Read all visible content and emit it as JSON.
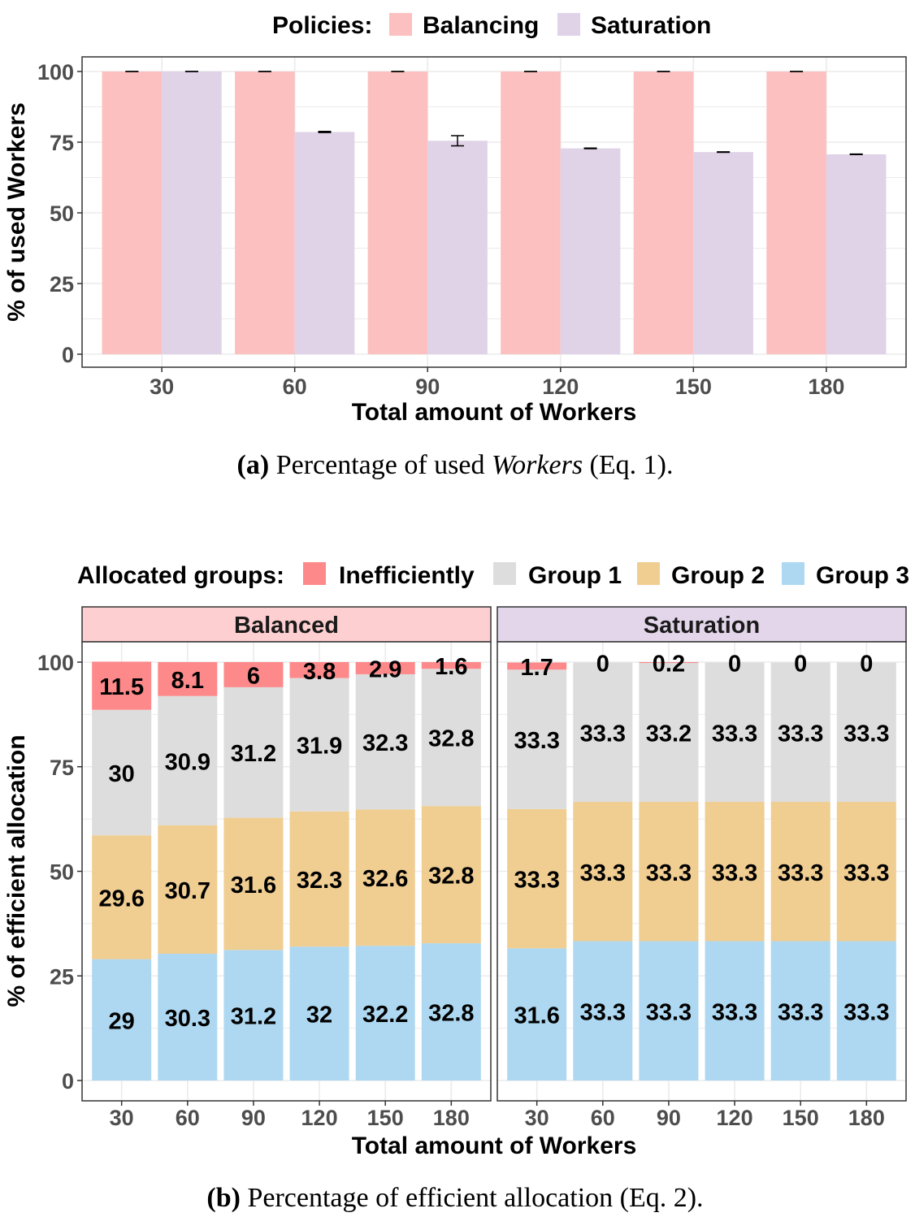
{
  "colors": {
    "balancing": "#fdc0c1",
    "saturation": "#e0d3e8",
    "inefficiently": "#fd898a",
    "group1": "#dddddd",
    "group2": "#f0cd91",
    "group3": "#aed8f1",
    "strip_balanced": "#fdcfd0",
    "strip_saturation": "#e3d6ea",
    "grid": "#ebebeb"
  },
  "chart_data": [
    {
      "type": "bar",
      "legend_title": "Policies:",
      "legend_position": "top",
      "categories": [
        "30",
        "60",
        "90",
        "120",
        "150",
        "180"
      ],
      "series": [
        {
          "name": "Balancing",
          "values": [
            100,
            100,
            100,
            100,
            100,
            100
          ],
          "error": [
            0,
            0,
            0,
            0,
            0,
            0
          ]
        },
        {
          "name": "Saturation",
          "values": [
            100,
            78.6,
            75.5,
            72.8,
            71.5,
            70.7
          ],
          "error": [
            0,
            0.2,
            1.8,
            0.1,
            0.1,
            0.1
          ]
        }
      ],
      "xlabel": "Total amount of Workers",
      "ylabel": "% of used Workers",
      "ylim": [
        0,
        100
      ],
      "yticks": [
        "0",
        "25",
        "50",
        "75",
        "100"
      ],
      "grid": true,
      "caption": {
        "tag": "(a)",
        "pre": " Percentage of used ",
        "em": "Workers",
        "post": " (Eq. 1)."
      }
    },
    {
      "type": "bar",
      "stacked": true,
      "legend_title": "Allocated groups:",
      "legend_position": "top",
      "legend": [
        "Inefficiently",
        "Group 1",
        "Group 2",
        "Group 3"
      ],
      "categories": [
        "30",
        "60",
        "90",
        "120",
        "150",
        "180"
      ],
      "facets": [
        {
          "name": "Balanced",
          "series": [
            {
              "name": "Group 3",
              "values": [
                29,
                30.3,
                31.2,
                32,
                32.2,
                32.8
              ],
              "labels": [
                "29",
                "30.3",
                "31.2",
                "32",
                "32.2",
                "32.8"
              ]
            },
            {
              "name": "Group 2",
              "values": [
                29.6,
                30.7,
                31.6,
                32.3,
                32.6,
                32.8
              ],
              "labels": [
                "29.6",
                "30.7",
                "31.6",
                "32.3",
                "32.6",
                "32.8"
              ]
            },
            {
              "name": "Group 1",
              "values": [
                30,
                30.9,
                31.2,
                31.9,
                32.3,
                32.8
              ],
              "labels": [
                "30",
                "30.9",
                "31.2",
                "31.9",
                "32.3",
                "32.8"
              ]
            },
            {
              "name": "Inefficiently",
              "values": [
                11.5,
                8.1,
                6,
                3.8,
                2.9,
                1.6
              ],
              "labels": [
                "11.5",
                "8.1",
                "6",
                "3.8",
                "2.9",
                "1.6"
              ]
            }
          ]
        },
        {
          "name": "Saturation",
          "series": [
            {
              "name": "Group 3",
              "values": [
                31.6,
                33.3,
                33.3,
                33.3,
                33.3,
                33.3
              ],
              "labels": [
                "31.6",
                "33.3",
                "33.3",
                "33.3",
                "33.3",
                "33.3"
              ]
            },
            {
              "name": "Group 2",
              "values": [
                33.3,
                33.3,
                33.3,
                33.3,
                33.3,
                33.3
              ],
              "labels": [
                "33.3",
                "33.3",
                "33.3",
                "33.3",
                "33.3",
                "33.3"
              ]
            },
            {
              "name": "Group 1",
              "values": [
                33.3,
                33.3,
                33.2,
                33.3,
                33.3,
                33.3
              ],
              "labels": [
                "33.3",
                "33.3",
                "33.2",
                "33.3",
                "33.3",
                "33.3"
              ]
            },
            {
              "name": "Inefficiently",
              "values": [
                1.7,
                0,
                0.2,
                0,
                0,
                0
              ],
              "labels": [
                "1.7",
                "0",
                "0.2",
                "0",
                "0",
                "0"
              ]
            }
          ]
        }
      ],
      "xlabel": "Total amount of Workers",
      "ylabel": "% of efficient allocation",
      "ylim": [
        0,
        100
      ],
      "yticks": [
        "0",
        "25",
        "50",
        "75",
        "100"
      ],
      "grid": true,
      "caption": {
        "tag": "(b)",
        "pre": " Percentage of efficient allocation (Eq. 2)."
      }
    }
  ]
}
